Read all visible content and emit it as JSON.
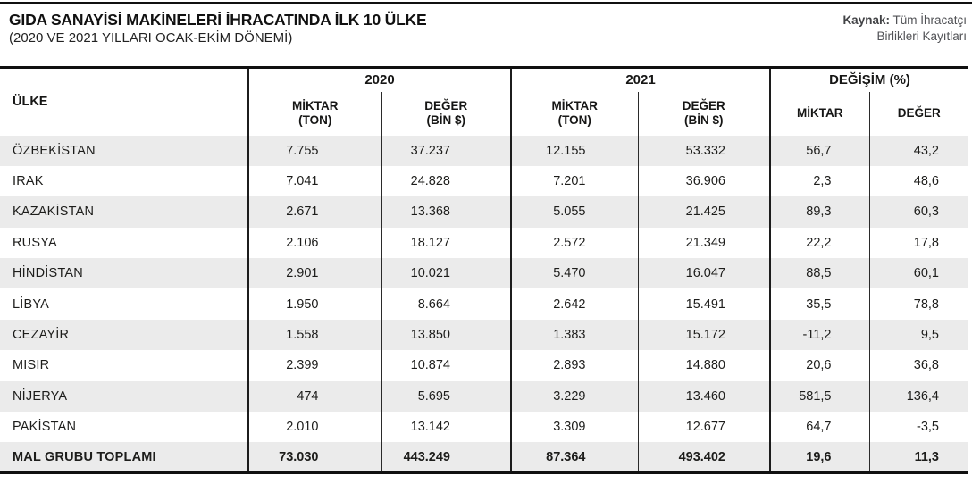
{
  "header": {
    "title": "GIDA SANAYİSİ MAKİNELERİ İHRACATINDA İLK 10 ÜLKE",
    "subtitle": "(2020 VE 2021 YILLARI OCAK-EKİM DÖNEMİ)"
  },
  "source": {
    "label": "Kaynak:",
    "text": " Tüm İhracatçı\nBirlikleri Kayıtları"
  },
  "colors": {
    "stripe": "#ebebeb",
    "rule": "#101010",
    "text": "#1d1d1b",
    "source_text": "#515256"
  },
  "chart_data": {
    "type": "table",
    "title": "GIDA SANAYİSİ MAKİNELERİ İHRACATINDA İLK 10 ÜLKE",
    "subtitle": "(2020 VE 2021 YILLARI OCAK-EKİM DÖNEMİ)",
    "source": "Kaynak: Tüm İhracatçı Birlikleri Kayıtları",
    "header": {
      "country": "ÜLKE",
      "y2020": "2020",
      "y2021": "2021",
      "change": "DEĞİŞİM (%)",
      "miktar": "MİKTAR",
      "miktar_unit": "(TON)",
      "deger": "DEĞER",
      "deger_unit": "(BİN $)",
      "change_miktar": "MİKTAR",
      "change_deger": "DEĞER"
    },
    "rows": [
      [
        "ÖZBEKİSTAN",
        "7.755",
        "37.237",
        "12.155",
        "53.332",
        "56,7",
        "43,2"
      ],
      [
        "IRAK",
        "7.041",
        "24.828",
        "7.201",
        "36.906",
        "2,3",
        "48,6"
      ],
      [
        "KAZAKİSTAN",
        "2.671",
        "13.368",
        "5.055",
        "21.425",
        "89,3",
        "60,3"
      ],
      [
        "RUSYA",
        "2.106",
        "18.127",
        "2.572",
        "21.349",
        "22,2",
        "17,8"
      ],
      [
        "HİNDİSTAN",
        "2.901",
        "10.021",
        "5.470",
        "16.047",
        "88,5",
        "60,1"
      ],
      [
        "LİBYA",
        "1.950",
        "8.664",
        "2.642",
        "15.491",
        "35,5",
        "78,8"
      ],
      [
        "CEZAYİR",
        "1.558",
        "13.850",
        "1.383",
        "15.172",
        "-11,2",
        "9,5"
      ],
      [
        "MISIR",
        "2.399",
        "10.874",
        "2.893",
        "14.880",
        "20,6",
        "36,8"
      ],
      [
        "NİJERYA",
        "474",
        "5.695",
        "3.229",
        "13.460",
        "581,5",
        "136,4"
      ],
      [
        "PAKİSTAN",
        "2.010",
        "13.142",
        "3.309",
        "12.677",
        "64,7",
        "-3,5"
      ]
    ],
    "total": [
      "MAL GRUBU TOPLAMI",
      "73.030",
      "443.249",
      "87.364",
      "493.402",
      "19,6",
      "11,3"
    ]
  }
}
